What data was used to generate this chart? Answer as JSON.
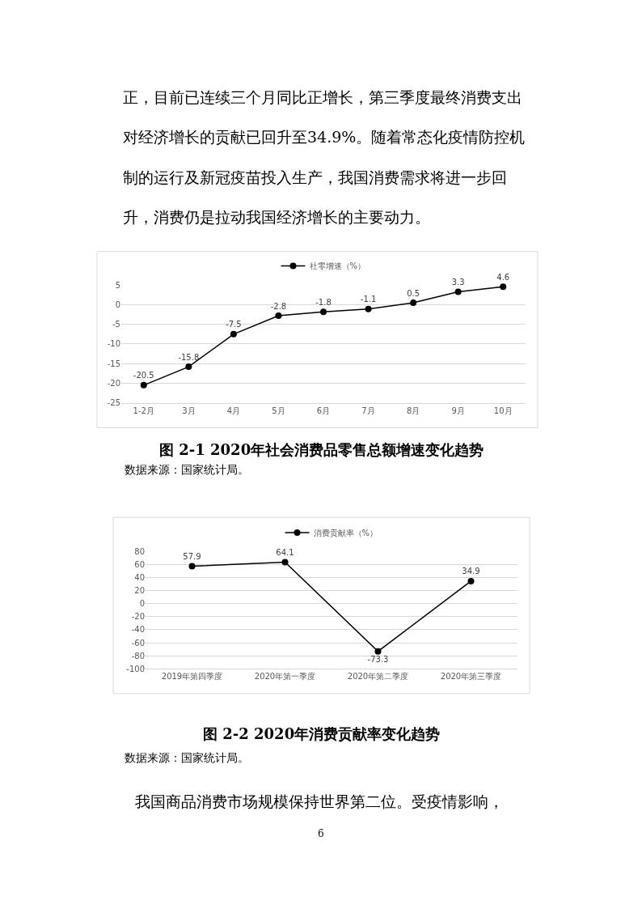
{
  "chart_data": [
    {
      "type": "line",
      "title": "图 2-1 2020年社会消费品零售总额增速变化趋势",
      "annotations": [
        "正，目前已连续三个月同比正增长，第三季度最终消费支出",
        "对经济增长的贡献已回升至34.9%。随着常态化疫情防控机",
        "制的运行及新冠疫苗投入生产，我国消费需求将进一步回",
        "升，消费仍是拉动我国经济增长的主要动力。",
        "数据来源：国家统计局。"
      ],
      "categories": [
        "1-2月",
        "3月",
        "4月",
        "5月",
        "6月",
        "7月",
        "8月",
        "9月",
        "10月"
      ],
      "series": [
        {
          "name": "社零增速（%）",
          "color": "#000000",
          "values": [
            -20.5,
            -15.8,
            -7.5,
            -2.8,
            -1.8,
            -1.1,
            0.5,
            3.3,
            4.6
          ]
        }
      ],
      "ylim": [
        -25,
        5
      ],
      "yticks": [
        -25,
        -20,
        -15,
        -10,
        -5,
        0,
        5
      ],
      "grid": "y",
      "legend": "top",
      "marker": "circle",
      "line_style": "solid",
      "data_labels": true
    },
    {
      "type": "line",
      "title": "图 2-2 2020年消费贡献率变化趋势",
      "annotations": [
        "数据来源：国家统计局。",
        "我国商品消费市场规模保持世界第二位。受疫情影响，",
        "6"
      ],
      "categories": [
        "2019年第四季度",
        "2020年第一季度",
        "2020年第二季度",
        "2020年第三季度"
      ],
      "series": [
        {
          "name": "消费贡献率（%）",
          "color": "#000000",
          "values": [
            57.9,
            64.1,
            -73.3,
            34.9
          ]
        }
      ],
      "ylim": [
        -100,
        80
      ],
      "yticks": [
        -100,
        -80,
        -60,
        -40,
        -20,
        0,
        20,
        40,
        60,
        80
      ],
      "grid": "y",
      "legend": "top",
      "marker": "circle",
      "line_style": "solid",
      "data_labels": true
    }
  ]
}
